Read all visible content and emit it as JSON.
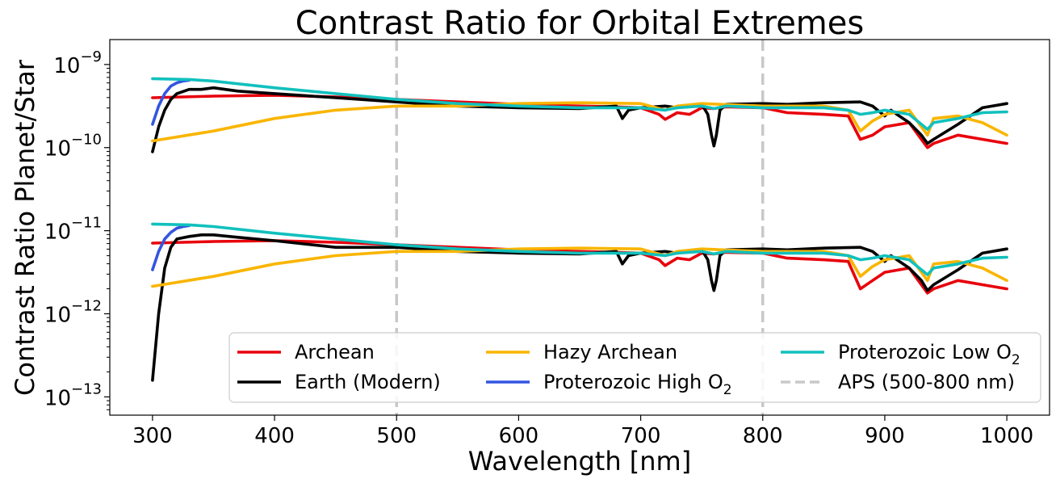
{
  "chart_data": {
    "type": "line",
    "title": "Contrast Ratio for Orbital Extremes",
    "xlabel": "Wavelength [nm]",
    "ylabel": "Contrast Ratio Planet/Star",
    "xlim": [
      265,
      1035
    ],
    "ylim_log10": [
      -13.22,
      -8.7
    ],
    "y_scale": "log",
    "grid": false,
    "legend_placement": "lower-right",
    "legend_columns": 3,
    "x_ticks": [
      300,
      400,
      500,
      600,
      700,
      800,
      900,
      1000
    ],
    "x_tick_labels": [
      "300",
      "400",
      "500",
      "600",
      "700",
      "800",
      "900",
      "1000"
    ],
    "y_ticks": [
      {
        "exp": -9,
        "base": "10",
        "sup": "−9"
      },
      {
        "exp": -10,
        "base": "10",
        "sup": "−10"
      },
      {
        "exp": -11,
        "base": "10",
        "sup": "−11"
      },
      {
        "exp": -12,
        "base": "10",
        "sup": "−12"
      },
      {
        "exp": -13,
        "base": "10",
        "sup": "−13"
      }
    ],
    "vlines": [
      {
        "x": 500,
        "color": "#c8c8c8",
        "style": "dashed"
      },
      {
        "x": 800,
        "color": "#c8c8c8",
        "style": "dashed"
      }
    ],
    "legend": [
      {
        "label": "Archean",
        "sub": "",
        "color": "#e8000b",
        "dashed": false
      },
      {
        "label": "Earth (Modern)",
        "sub": "",
        "color": "#000000",
        "dashed": false
      },
      {
        "label": "Hazy Archean",
        "sub": "",
        "color": "#f9b500",
        "dashed": false
      },
      {
        "label": "Proterozoic High O",
        "sub": "2",
        "color": "#3355e0",
        "dashed": false
      },
      {
        "label": "Proterozoic Low O",
        "sub": "2",
        "color": "#11c0bd",
        "dashed": false
      },
      {
        "label": "APS (500-800 nm)",
        "sub": "",
        "color": "#c8c8c8",
        "dashed": true
      }
    ],
    "series": [
      {
        "name": "Archean",
        "group": "upper",
        "color": "#e8000b",
        "x": [
          300,
          350,
          400,
          450,
          500,
          550,
          600,
          650,
          680,
          700,
          715,
          720,
          730,
          740,
          750,
          760,
          770,
          800,
          820,
          850,
          870,
          880,
          890,
          900,
          920,
          930,
          935,
          940,
          960,
          980,
          1000
        ],
        "log10_y": [
          -9.4,
          -9.38,
          -9.37,
          -9.39,
          -9.42,
          -9.45,
          -9.48,
          -9.5,
          -9.51,
          -9.52,
          -9.6,
          -9.66,
          -9.58,
          -9.6,
          -9.52,
          -9.53,
          -9.51,
          -9.52,
          -9.58,
          -9.6,
          -9.62,
          -9.9,
          -9.85,
          -9.75,
          -9.7,
          -9.9,
          -10.0,
          -9.95,
          -9.85,
          -9.9,
          -9.95
        ]
      },
      {
        "name": "Earth (Modern)",
        "group": "upper",
        "color": "#000000",
        "x": [
          300,
          305,
          310,
          315,
          320,
          330,
          340,
          350,
          370,
          400,
          450,
          500,
          550,
          600,
          650,
          680,
          685,
          690,
          700,
          720,
          730,
          740,
          750,
          755,
          758,
          760,
          762,
          765,
          770,
          800,
          820,
          850,
          880,
          890,
          900,
          905,
          910,
          920,
          930,
          935,
          940,
          960,
          980,
          1000
        ],
        "log10_y": [
          -10.05,
          -9.75,
          -9.55,
          -9.42,
          -9.35,
          -9.3,
          -9.3,
          -9.28,
          -9.32,
          -9.35,
          -9.4,
          -9.45,
          -9.5,
          -9.52,
          -9.53,
          -9.5,
          -9.65,
          -9.55,
          -9.52,
          -9.5,
          -9.52,
          -9.5,
          -9.48,
          -9.6,
          -9.85,
          -9.98,
          -9.85,
          -9.55,
          -9.48,
          -9.47,
          -9.48,
          -9.46,
          -9.45,
          -9.5,
          -9.62,
          -9.55,
          -9.6,
          -9.7,
          -9.85,
          -9.95,
          -9.9,
          -9.72,
          -9.52,
          -9.47
        ]
      },
      {
        "name": "Hazy Archean",
        "group": "upper",
        "color": "#f9b500",
        "x": [
          300,
          350,
          400,
          450,
          500,
          550,
          600,
          650,
          700,
          720,
          730,
          750,
          800,
          850,
          870,
          880,
          890,
          900,
          920,
          930,
          935,
          940,
          960,
          980,
          1000
        ],
        "log10_y": [
          -9.92,
          -9.8,
          -9.65,
          -9.55,
          -9.5,
          -9.5,
          -9.47,
          -9.46,
          -9.47,
          -9.55,
          -9.5,
          -9.47,
          -9.5,
          -9.5,
          -9.55,
          -9.8,
          -9.68,
          -9.6,
          -9.55,
          -9.75,
          -9.85,
          -9.65,
          -9.62,
          -9.7,
          -9.85
        ]
      },
      {
        "name": "Proterozoic High O2",
        "group": "upper",
        "color": "#3355e0",
        "x": [
          300,
          305,
          310,
          315,
          320,
          325,
          330
        ],
        "log10_y": [
          -9.72,
          -9.5,
          -9.35,
          -9.26,
          -9.22,
          -9.2,
          -9.19
        ]
      },
      {
        "name": "Proterozoic Low O2",
        "group": "upper",
        "color": "#11c0bd",
        "x": [
          300,
          330,
          350,
          400,
          450,
          500,
          550,
          600,
          650,
          700,
          720,
          730,
          750,
          760,
          770,
          800,
          850,
          870,
          880,
          890,
          900,
          920,
          930,
          935,
          940,
          960,
          980,
          1000
        ],
        "log10_y": [
          -9.17,
          -9.18,
          -9.2,
          -9.28,
          -9.35,
          -9.42,
          -9.47,
          -9.5,
          -9.52,
          -9.52,
          -9.55,
          -9.52,
          -9.5,
          -9.53,
          -9.5,
          -9.52,
          -9.52,
          -9.55,
          -9.6,
          -9.58,
          -9.55,
          -9.6,
          -9.72,
          -9.78,
          -9.7,
          -9.65,
          -9.58,
          -9.57
        ]
      },
      {
        "name": "Archean",
        "group": "lower",
        "color": "#e8000b",
        "x": [
          300,
          350,
          400,
          450,
          500,
          550,
          600,
          650,
          680,
          700,
          715,
          720,
          730,
          740,
          750,
          760,
          770,
          800,
          820,
          850,
          870,
          880,
          890,
          900,
          920,
          930,
          935,
          940,
          960,
          980,
          1000
        ],
        "log10_y": [
          -11.15,
          -11.13,
          -11.12,
          -11.14,
          -11.17,
          -11.2,
          -11.23,
          -11.25,
          -11.26,
          -11.27,
          -11.35,
          -11.42,
          -11.33,
          -11.35,
          -11.27,
          -11.28,
          -11.26,
          -11.27,
          -11.33,
          -11.35,
          -11.37,
          -11.7,
          -11.6,
          -11.5,
          -11.45,
          -11.65,
          -11.75,
          -11.7,
          -11.6,
          -11.65,
          -11.7
        ]
      },
      {
        "name": "Earth (Modern)",
        "group": "lower",
        "color": "#000000",
        "x": [
          300,
          305,
          310,
          315,
          320,
          330,
          340,
          350,
          370,
          400,
          450,
          500,
          550,
          600,
          650,
          680,
          685,
          690,
          700,
          720,
          730,
          740,
          750,
          755,
          758,
          760,
          762,
          765,
          770,
          800,
          820,
          850,
          880,
          890,
          900,
          905,
          910,
          920,
          930,
          935,
          940,
          960,
          980,
          1000
        ],
        "log10_y": [
          -12.8,
          -12.0,
          -11.45,
          -11.2,
          -11.1,
          -11.07,
          -11.05,
          -11.05,
          -11.08,
          -11.12,
          -11.2,
          -11.2,
          -11.25,
          -11.27,
          -11.28,
          -11.25,
          -11.4,
          -11.3,
          -11.27,
          -11.25,
          -11.27,
          -11.25,
          -11.23,
          -11.35,
          -11.6,
          -11.72,
          -11.6,
          -11.3,
          -11.23,
          -11.22,
          -11.23,
          -11.21,
          -11.2,
          -11.25,
          -11.37,
          -11.3,
          -11.35,
          -11.45,
          -11.6,
          -11.72,
          -11.65,
          -11.47,
          -11.27,
          -11.22
        ]
      },
      {
        "name": "Hazy Archean",
        "group": "lower",
        "color": "#f9b500",
        "x": [
          300,
          350,
          400,
          450,
          500,
          550,
          600,
          650,
          700,
          720,
          730,
          750,
          800,
          850,
          870,
          880,
          890,
          900,
          920,
          930,
          935,
          940,
          960,
          980,
          1000
        ],
        "log10_y": [
          -11.67,
          -11.55,
          -11.4,
          -11.3,
          -11.25,
          -11.25,
          -11.22,
          -11.21,
          -11.22,
          -11.3,
          -11.25,
          -11.22,
          -11.25,
          -11.25,
          -11.3,
          -11.55,
          -11.43,
          -11.35,
          -11.3,
          -11.5,
          -11.6,
          -11.4,
          -11.37,
          -11.45,
          -11.6
        ]
      },
      {
        "name": "Proterozoic High O2",
        "group": "lower",
        "color": "#3355e0",
        "x": [
          300,
          305,
          310,
          315,
          320,
          325,
          330
        ],
        "log10_y": [
          -11.47,
          -11.25,
          -11.1,
          -11.02,
          -10.97,
          -10.95,
          -10.94
        ]
      },
      {
        "name": "Proterozoic Low O2",
        "group": "lower",
        "color": "#11c0bd",
        "x": [
          300,
          330,
          350,
          400,
          450,
          500,
          550,
          600,
          650,
          700,
          720,
          730,
          750,
          760,
          770,
          800,
          850,
          870,
          880,
          890,
          900,
          920,
          930,
          935,
          940,
          960,
          980,
          1000
        ],
        "log10_y": [
          -10.92,
          -10.93,
          -10.95,
          -11.03,
          -11.1,
          -11.17,
          -11.22,
          -11.25,
          -11.27,
          -11.27,
          -11.3,
          -11.27,
          -11.25,
          -11.28,
          -11.25,
          -11.27,
          -11.27,
          -11.3,
          -11.35,
          -11.33,
          -11.3,
          -11.35,
          -11.47,
          -11.53,
          -11.45,
          -11.4,
          -11.33,
          -11.32
        ]
      }
    ]
  }
}
